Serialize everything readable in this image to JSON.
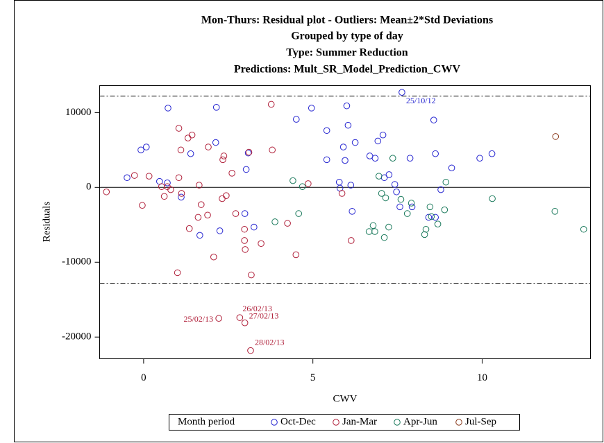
{
  "chart_data": {
    "type": "scatter",
    "title": [
      "Mon-Thurs: Residual plot - Outliers: Mean±2*Std Deviations",
      "Grouped by type of day",
      "Type: Summer Reduction",
      "Predictions: Mult_SR_Model_Prediction_CWV"
    ],
    "x_label": "CWV",
    "y_label": "Residuals",
    "legend_title": "Month period",
    "legend_position": "bottom",
    "xlim": [
      -1.3,
      13.2
    ],
    "ylim": [
      -22900,
      13600
    ],
    "xticks": [
      0,
      5,
      10
    ],
    "yticks": [
      -20000,
      -10000,
      0,
      10000
    ],
    "grid": false,
    "reference_lines": [
      {
        "value": 12200,
        "style": "dashdot"
      },
      {
        "value": 0,
        "style": "solid"
      },
      {
        "value": -12800,
        "style": "dashdot"
      }
    ],
    "series": [
      {
        "name": "Oct-Dec",
        "color": "#2424d0",
        "x": [
          -0.49,
          -0.08,
          0.08,
          0.47,
          0.7,
          0.72,
          1.11,
          1.39,
          2.15,
          2.13,
          1.66,
          2.25,
          2.99,
          3.03,
          3.09,
          3.26,
          4.51,
          4.96,
          5.41,
          5.41,
          5.8,
          5.78,
          5.9,
          5.95,
          6.0,
          6.04,
          6.12,
          6.16,
          6.25,
          6.68,
          6.84,
          6.92,
          7.07,
          7.11,
          7.25,
          7.42,
          7.47,
          7.57,
          7.87,
          7.93,
          8.42,
          8.62,
          8.57,
          8.62,
          8.78,
          9.1,
          9.93,
          10.29,
          7.63
        ],
        "values": [
          1300,
          5000,
          5400,
          800,
          600,
          10600,
          -1300,
          4500,
          10700,
          6000,
          -6400,
          -5800,
          -3500,
          2400,
          4600,
          -5300,
          9100,
          10600,
          7600,
          3700,
          -100,
          700,
          5400,
          3600,
          10900,
          8300,
          300,
          -3200,
          6000,
          4200,
          3900,
          6200,
          7000,
          1300,
          1700,
          400,
          -600,
          -2600,
          3900,
          -2600,
          -4000,
          -4000,
          9000,
          4500,
          -300,
          2600,
          3900,
          4500,
          12700
        ],
        "labels": [
          null,
          null,
          null,
          null,
          null,
          null,
          null,
          null,
          null,
          null,
          null,
          null,
          null,
          null,
          null,
          null,
          null,
          null,
          null,
          null,
          null,
          null,
          null,
          null,
          null,
          null,
          null,
          null,
          null,
          null,
          null,
          null,
          null,
          null,
          null,
          null,
          null,
          null,
          null,
          null,
          null,
          null,
          null,
          null,
          null,
          null,
          null,
          null,
          "25/10/12"
        ]
      },
      {
        "name": "Jan-Mar",
        "color": "#b0203a",
        "x": [
          -1.1,
          -0.27,
          -0.04,
          0.16,
          0.53,
          0.61,
          0.7,
          0.8,
          1.0,
          1.04,
          1.04,
          1.1,
          1.12,
          1.31,
          1.43,
          1.35,
          1.61,
          1.64,
          1.7,
          1.89,
          1.91,
          2.07,
          2.34,
          2.37,
          2.32,
          2.44,
          2.61,
          2.72,
          2.98,
          3.0,
          2.98,
          3.11,
          3.18,
          3.47,
          3.8,
          3.77,
          4.25,
          4.5,
          4.86,
          5.86,
          6.13,
          2.22,
          2.84,
          2.99,
          3.16
        ],
        "values": [
          -600,
          1600,
          -2400,
          1500,
          100,
          -1200,
          100,
          -300,
          -11400,
          7900,
          1300,
          5000,
          -800,
          6600,
          7000,
          -5500,
          -4000,
          300,
          -2300,
          -3700,
          5400,
          -9300,
          3700,
          4200,
          -1500,
          -1100,
          1900,
          -3500,
          -5600,
          -8300,
          -7100,
          4700,
          -11700,
          -7500,
          5000,
          11100,
          -4800,
          -9000,
          500,
          -800,
          -7100,
          -17500,
          -17400,
          -18100,
          -21800
        ],
        "labels": [
          null,
          null,
          null,
          null,
          null,
          null,
          null,
          null,
          null,
          null,
          null,
          null,
          null,
          null,
          null,
          null,
          null,
          null,
          null,
          null,
          null,
          null,
          null,
          null,
          null,
          null,
          null,
          null,
          null,
          null,
          null,
          null,
          null,
          null,
          null,
          null,
          null,
          null,
          null,
          null,
          null,
          "25/02/13",
          "26/02/13",
          "27/02/13",
          "28/02/13"
        ]
      },
      {
        "name": "Apr-Jun",
        "color": "#1b7a5c",
        "x": [
          4.41,
          4.69,
          3.88,
          4.58,
          6.66,
          6.78,
          6.83,
          6.95,
          7.03,
          7.11,
          7.15,
          7.24,
          7.36,
          7.6,
          7.79,
          7.91,
          8.3,
          8.34,
          8.46,
          8.5,
          8.69,
          8.89,
          8.93,
          10.3,
          12.15,
          13.0
        ],
        "values": [
          900,
          100,
          -4600,
          -3500,
          -5900,
          -5100,
          -5900,
          1500,
          -800,
          -6700,
          -1400,
          -5300,
          3900,
          -1600,
          -3500,
          -2100,
          -6300,
          -5600,
          -2600,
          -3900,
          -4900,
          -3000,
          700,
          -1500,
          -3200,
          -5600
        ]
      },
      {
        "name": "Jul-Sep",
        "color": "#8a3a1c",
        "x": [
          12.17
        ],
        "values": [
          6800
        ]
      }
    ]
  }
}
